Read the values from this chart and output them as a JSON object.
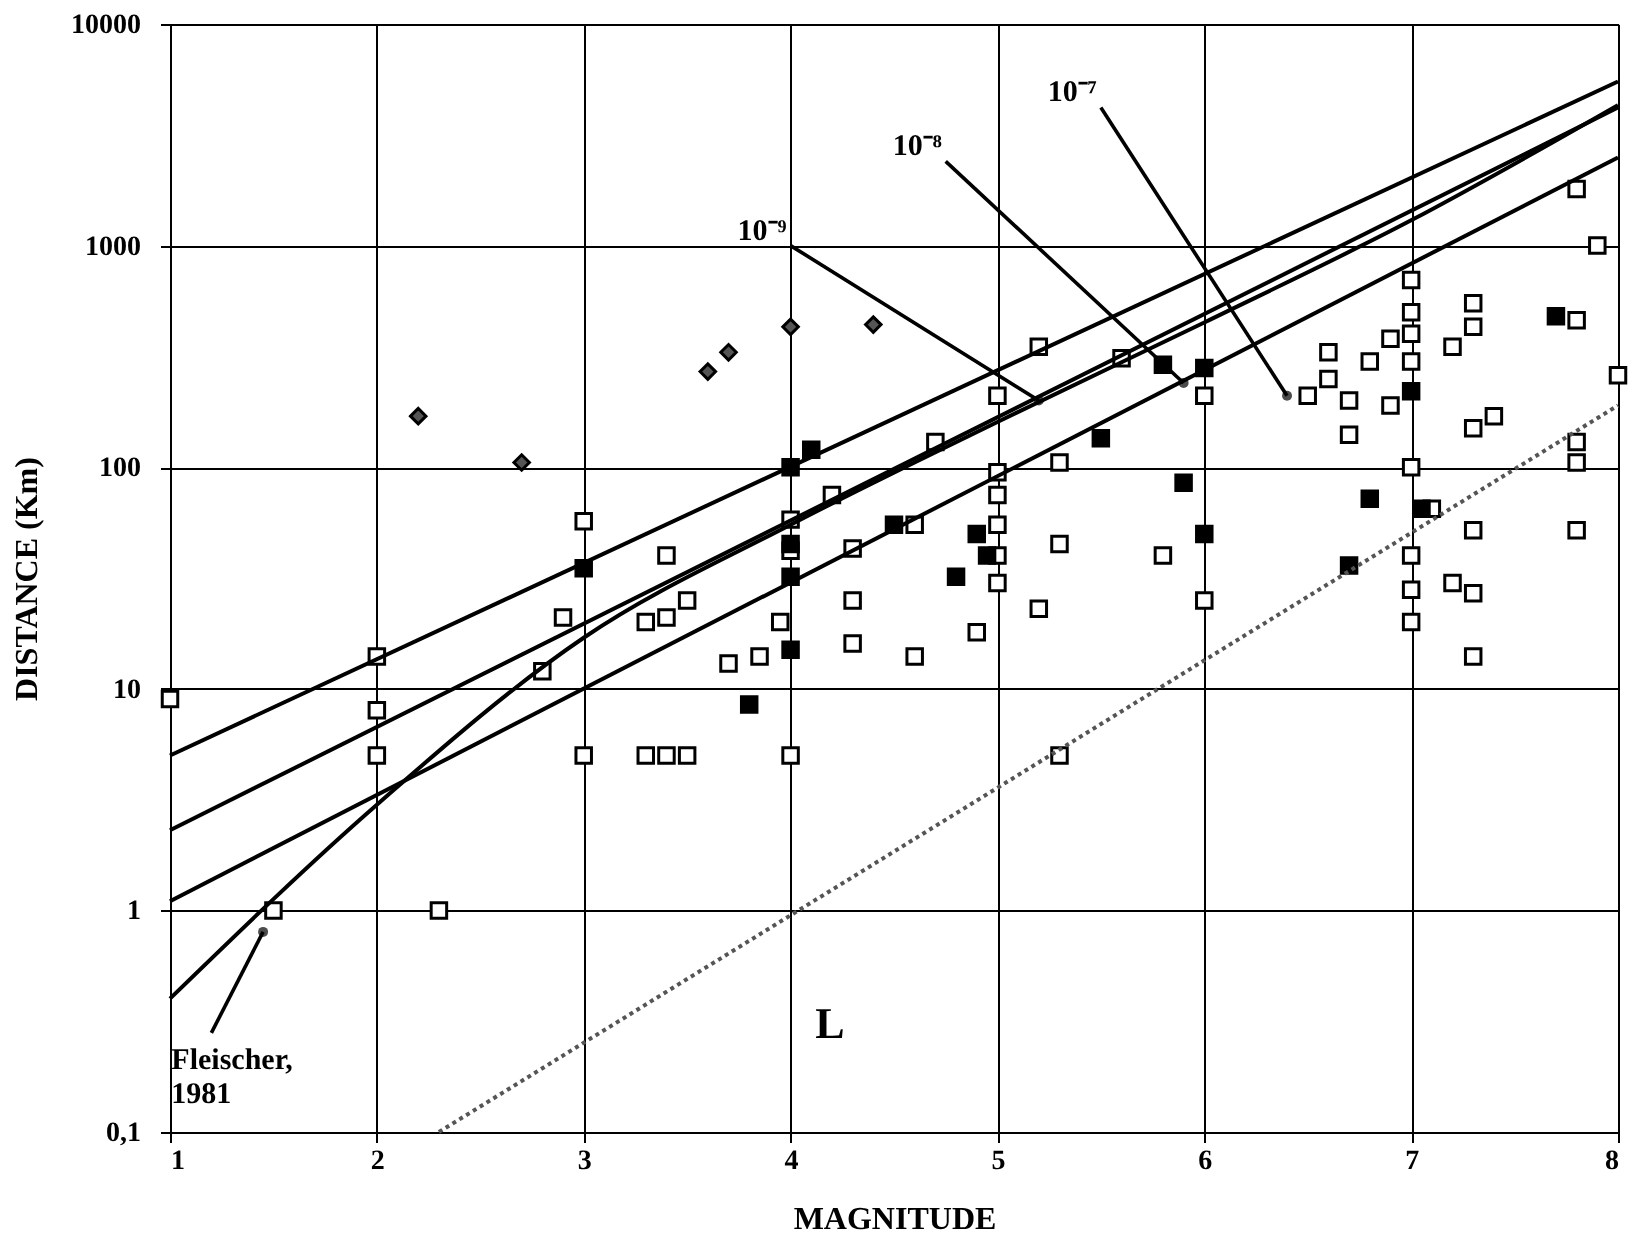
{
  "chart_data": {
    "type": "scatter",
    "xlabel": "MAGNITUDE",
    "ylabel": "DISTANCE  (Km)",
    "log": "y",
    "grid": true,
    "legend": false,
    "xlim": [
      1,
      8
    ],
    "xticks": [
      1,
      2,
      3,
      4,
      5,
      6,
      7,
      8
    ],
    "ylim": [
      0.1,
      10000
    ],
    "yticks": [
      {
        "value": 0.1,
        "label": "0,1"
      },
      1,
      10,
      100,
      1000,
      10000
    ],
    "series": [
      {
        "marker": "square",
        "color": "#ffffff",
        "x": [
          1,
          1.5,
          2,
          2,
          2,
          2.3,
          2.8,
          2.9,
          3,
          3,
          3.3,
          3.3,
          3.4,
          3.5,
          3.4,
          3.4,
          3.5,
          3.7,
          3.85,
          3.95,
          4,
          4,
          4,
          4.2,
          4.3,
          4.3,
          4.3,
          4.6,
          4.6,
          4.7,
          4.9,
          5,
          5,
          5,
          5,
          5,
          5,
          5.3,
          5.3,
          5.2,
          5.2,
          5.3,
          5.6,
          5.8,
          6,
          6,
          6.5,
          6.6,
          6.6,
          6.7,
          6.7,
          6.8,
          6.9,
          6.9,
          7,
          7,
          7,
          7,
          7,
          7,
          7,
          7,
          7.1,
          7.2,
          7.2,
          7.3,
          7.3,
          7.3,
          7.3,
          7.3,
          7.3,
          7.4,
          7.8,
          7.8,
          7.8,
          7.8,
          7.8,
          7.9,
          8
        ],
        "values": [
          9,
          1,
          14,
          8,
          5,
          1,
          12,
          21,
          57,
          5,
          20,
          5,
          5,
          5,
          40,
          21,
          25,
          13,
          14,
          20,
          58,
          42,
          5,
          75,
          43,
          25,
          16,
          55,
          14,
          130,
          18,
          210,
          95,
          75,
          55,
          40,
          30,
          45,
          5,
          350,
          23,
          105,
          310,
          40,
          210,
          25,
          210,
          250,
          330,
          200,
          140,
          300,
          190,
          380,
          700,
          500,
          400,
          300,
          100,
          40,
          20,
          28,
          65,
          350,
          30,
          550,
          430,
          150,
          52,
          27,
          14,
          170,
          1800,
          460,
          130,
          105,
          52,
          1000,
          260
        ]
      },
      {
        "marker": "square",
        "color": "#000000",
        "x": [
          3,
          3.8,
          4,
          4,
          4,
          4,
          4.1,
          4.5,
          4.8,
          4.9,
          4.95,
          5.5,
          5.8,
          6,
          6,
          5.9,
          6.7,
          6.8,
          7,
          7.05,
          7.7
        ],
        "values": [
          35,
          8.5,
          100,
          45,
          32,
          15,
          120,
          55,
          32,
          50,
          40,
          135,
          290,
          280,
          50,
          85,
          36,
          72,
          220,
          65,
          480
        ]
      },
      {
        "marker": "diamond",
        "color": "#555555",
        "x": [
          2.2,
          2.7,
          3.6,
          3.7,
          4,
          4.4
        ],
        "values": [
          170,
          105,
          270,
          330,
          430,
          440
        ]
      },
      {
        "type": "line",
        "line_style": "solid",
        "color": "#000000",
        "x": [
          1,
          8
        ],
        "values": [
          5,
          5500
        ]
      },
      {
        "type": "line",
        "line_style": "solid",
        "color": "#000000",
        "x": [
          1,
          8
        ],
        "values": [
          2.3,
          4200
        ]
      },
      {
        "type": "line",
        "line_style": "solid",
        "color": "#000000",
        "x": [
          1,
          8
        ],
        "values": [
          1.1,
          2500
        ]
      },
      {
        "type": "line",
        "line_style": "solid",
        "color": "#000000",
        "x": [
          1,
          2,
          3,
          4,
          5,
          6,
          7,
          8
        ],
        "values": [
          0.4,
          3,
          17,
          55,
          160,
          450,
          1300,
          4300
        ]
      },
      {
        "type": "line",
        "line_style": "dotted",
        "color": "#555555",
        "x": [
          2.3,
          8
        ],
        "values": [
          0.1,
          190
        ]
      }
    ],
    "annotations": [
      {
        "text": "10⁻⁹",
        "x": 5.2,
        "y": 200
      },
      {
        "text": "10⁻⁸",
        "x": 5.9,
        "y": 240
      },
      {
        "text": "10⁻⁷",
        "x": 6.4,
        "y": 210
      },
      {
        "text": "Fleischer, 1981",
        "x": 1.45,
        "y": 0.8
      },
      "L"
    ]
  }
}
